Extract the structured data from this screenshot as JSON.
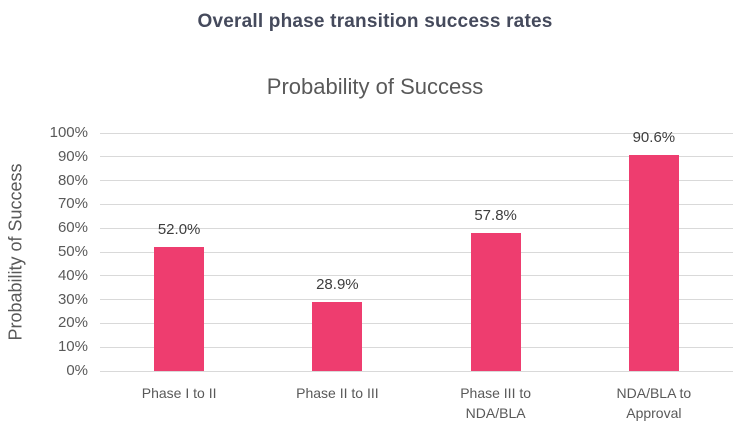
{
  "page": {
    "header_title": "Overall phase transition success rates"
  },
  "chart_data": {
    "type": "bar",
    "title": "Probability of Success",
    "xlabel": "",
    "ylabel": "Probability of Success",
    "categories": [
      "Phase I to II",
      "Phase II to III",
      "Phase III to NDA/BLA",
      "NDA/BLA to Approval"
    ],
    "values": [
      52.0,
      28.9,
      57.8,
      90.6
    ],
    "data_labels": [
      "52.0%",
      "28.9%",
      "57.8%",
      "90.6%"
    ],
    "ylim": [
      0,
      100
    ],
    "ytick_step": 10,
    "ytick_labels": [
      "0%",
      "10%",
      "20%",
      "30%",
      "40%",
      "50%",
      "60%",
      "70%",
      "80%",
      "90%",
      "100%"
    ],
    "grid": true,
    "legend": "none"
  },
  "colors": {
    "bar": "#ee3d6f",
    "gridline": "#d9d9d9",
    "axis_text": "#595959",
    "data_label_text": "#3d3d3d",
    "header_title_text": "#454a5c",
    "chart_title_text": "#595959",
    "background": "#ffffff"
  }
}
